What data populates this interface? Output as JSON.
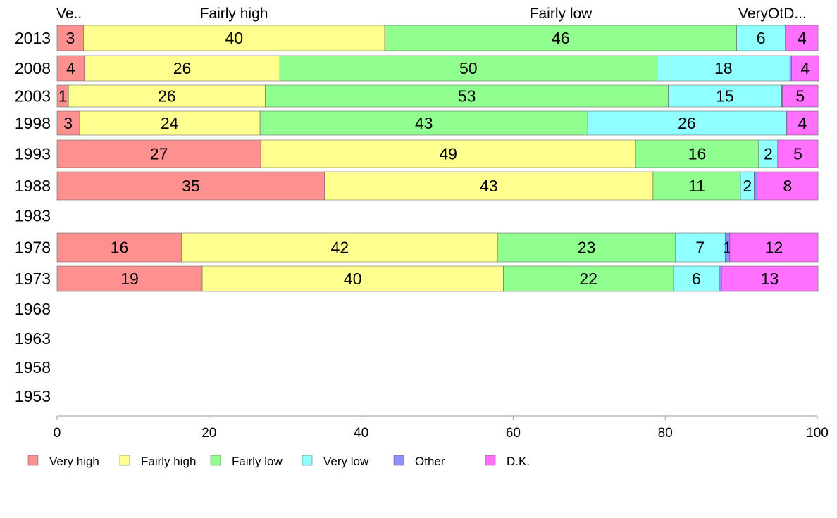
{
  "chart_data": {
    "type": "bar",
    "orientation": "horizontal",
    "stacked": true,
    "categories": [
      "2013",
      "2008",
      "2003",
      "1998",
      "1993",
      "1988",
      "1983",
      "1978",
      "1973",
      "1968",
      "1963",
      "1958",
      "1953"
    ],
    "series": [
      {
        "name": "Very high",
        "color": "#ff9090",
        "values": [
          3.5,
          3.6,
          1.5,
          2.9,
          26.8,
          35.2,
          null,
          16.4,
          19.1,
          null,
          null,
          null,
          null
        ]
      },
      {
        "name": "Fairly high",
        "color": "#ffff90",
        "values": [
          39.6,
          25.7,
          25.9,
          23.8,
          49.3,
          43.2,
          null,
          41.6,
          39.6,
          null,
          null,
          null,
          null
        ]
      },
      {
        "name": "Fairly low",
        "color": "#90ff90",
        "values": [
          46.3,
          49.6,
          53.0,
          43.1,
          16.2,
          11.5,
          null,
          23.3,
          22.4,
          null,
          null,
          null,
          null
        ]
      },
      {
        "name": "Very low",
        "color": "#90ffff",
        "values": [
          6.4,
          17.5,
          14.9,
          26.1,
          2.5,
          1.8,
          null,
          6.6,
          6.0,
          null,
          null,
          null,
          null
        ]
      },
      {
        "name": "Other",
        "color": "#9090ff",
        "values": [
          0.1,
          0.2,
          0.1,
          0.1,
          0.0,
          0.4,
          null,
          0.6,
          0.3,
          null,
          null,
          null,
          null
        ]
      },
      {
        "name": "D.K.",
        "color": "#ff70ff",
        "values": [
          4.2,
          3.6,
          4.7,
          4.1,
          5.3,
          8.0,
          null,
          11.6,
          12.7,
          null,
          null,
          null,
          null
        ]
      }
    ],
    "data_labels": [
      [
        "3",
        "40",
        "46",
        "6",
        "",
        "4"
      ],
      [
        "4",
        "26",
        "50",
        "18",
        "",
        "4"
      ],
      [
        "1",
        "26",
        "53",
        "15",
        "",
        "5"
      ],
      [
        "3",
        "24",
        "43",
        "26",
        "",
        "4"
      ],
      [
        "27",
        "49",
        "16",
        "2",
        "",
        "5"
      ],
      [
        "35",
        "43",
        "11",
        "2",
        "",
        "8"
      ],
      [],
      [
        "16",
        "42",
        "23",
        "7",
        "1",
        "12"
      ],
      [
        "19",
        "40",
        "22",
        "6",
        "",
        "13"
      ],
      [],
      [],
      [],
      []
    ],
    "top_labels": [
      "Ve..",
      "Fairly high",
      "Fairly low",
      "VeryOtD..."
    ],
    "xlim": [
      0,
      100
    ],
    "xticks": [
      "0",
      "20",
      "40",
      "60",
      "80",
      "100"
    ],
    "legend_position": "bottom",
    "grid": false
  }
}
